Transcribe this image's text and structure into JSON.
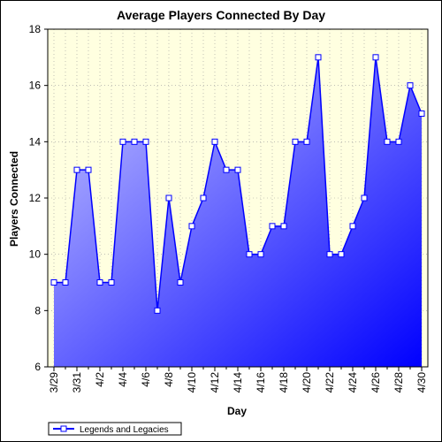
{
  "chart_data": {
    "type": "area",
    "title": "Average Players Connected By Day",
    "xlabel": "Day",
    "ylabel": "Players Connected",
    "ylim": [
      6,
      18
    ],
    "yticks": [
      6,
      8,
      10,
      12,
      14,
      16,
      18
    ],
    "x": [
      "3/29",
      "3/30",
      "3/31",
      "4/1",
      "4/2",
      "4/3",
      "4/4",
      "4/5",
      "4/6",
      "4/7",
      "4/8",
      "4/9",
      "4/10",
      "4/11",
      "4/12",
      "4/13",
      "4/14",
      "4/15",
      "4/16",
      "4/17",
      "4/18",
      "4/19",
      "4/20",
      "4/21",
      "4/22",
      "4/23",
      "4/24",
      "4/25",
      "4/26",
      "4/27",
      "4/28",
      "4/29",
      "4/30"
    ],
    "xtick_labels": [
      "3/29",
      "3/31",
      "4/2",
      "4/4",
      "4/6",
      "4/8",
      "4/10",
      "4/12",
      "4/14",
      "4/16",
      "4/18",
      "4/20",
      "4/22",
      "4/24",
      "4/26",
      "4/28",
      "4/30"
    ],
    "grid": true,
    "legend_position": "bottom-left",
    "series": [
      {
        "name": "Legends and Legacies",
        "values": [
          9,
          9,
          13,
          13,
          9,
          9,
          14,
          14,
          14,
          8,
          12,
          9,
          11,
          12,
          14,
          13,
          13,
          10,
          10,
          11,
          11,
          14,
          14,
          17,
          10,
          10,
          11,
          12,
          17,
          14,
          14,
          16,
          15
        ]
      }
    ],
    "colors": {
      "plot_bg": "#ffffe0",
      "line": "#0000ff",
      "fill_light": "#c8c8ff",
      "fill_dark": "#0000ff",
      "marker_fill": "#ffffff"
    }
  }
}
